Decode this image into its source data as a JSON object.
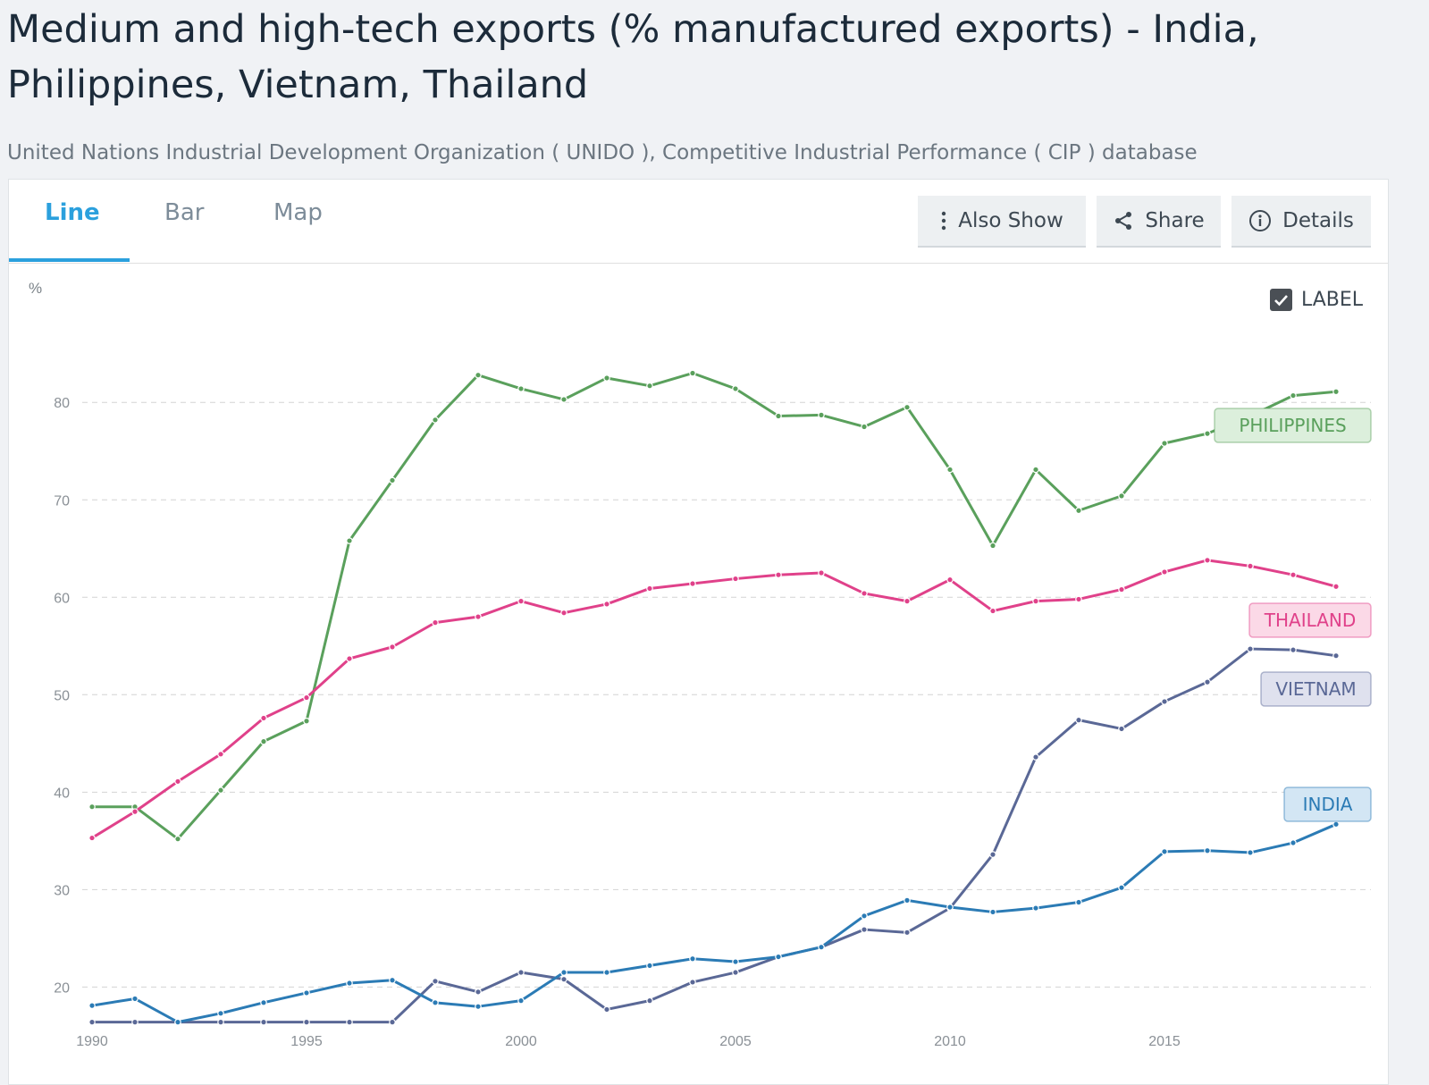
{
  "header": {
    "title": "Medium and high-tech exports (% manufactured exports) - India, Philippines, Vietnam, Thailand",
    "source": "United Nations Industrial Development Organization ( UNIDO ), Competitive Industrial Performance ( CIP ) database"
  },
  "tabs": [
    {
      "label": "Line",
      "active": true
    },
    {
      "label": "Bar",
      "active": false
    },
    {
      "label": "Map",
      "active": false
    }
  ],
  "toolbar": {
    "also_show_label": "Also Show",
    "share_label": "Share",
    "details_label": "Details"
  },
  "icons": {
    "also_show": "vertical-dots-icon",
    "share": "share-icon",
    "details": "info-icon",
    "label_toggle": "checkbox-checked-icon"
  },
  "chart_controls": {
    "unit_label": "%",
    "label_toggle_text": "LABEL",
    "label_toggle_checked": true
  },
  "chart_data": {
    "type": "line",
    "x": [
      1990,
      1991,
      1992,
      1993,
      1994,
      1995,
      1996,
      1997,
      1998,
      1999,
      2000,
      2001,
      2002,
      2003,
      2004,
      2005,
      2006,
      2007,
      2008,
      2009,
      2010,
      2011,
      2012,
      2013,
      2014,
      2015,
      2016,
      2017,
      2018,
      2019
    ],
    "yticks": [
      20,
      30,
      40,
      50,
      60,
      70,
      80
    ],
    "xticks": [
      1990,
      1995,
      2000,
      2005,
      2010,
      2015
    ],
    "xlim": [
      1990,
      2020
    ],
    "ylim": [
      16,
      88
    ],
    "grid": true,
    "series": [
      {
        "name": "PHILIPPINES",
        "color": "#5aa05c",
        "values": [
          38.5,
          38.5,
          35.2,
          40.2,
          45.2,
          47.3,
          65.8,
          72.0,
          78.2,
          82.8,
          81.4,
          80.3,
          82.5,
          81.7,
          83.0,
          81.4,
          78.6,
          78.7,
          77.5,
          79.5,
          73.1,
          65.3,
          73.1,
          68.9,
          70.4,
          75.8,
          76.8,
          78.6,
          80.7,
          81.1
        ]
      },
      {
        "name": "THAILAND",
        "color": "#e0418a",
        "values": [
          35.3,
          38.0,
          41.1,
          43.9,
          47.6,
          49.7,
          53.7,
          54.9,
          57.4,
          58.0,
          59.6,
          58.4,
          59.3,
          60.9,
          61.4,
          61.9,
          62.3,
          62.5,
          60.4,
          59.6,
          61.8,
          58.6,
          59.6,
          59.8,
          60.8,
          62.6,
          63.8,
          63.2,
          62.3,
          61.1
        ]
      },
      {
        "name": "VIETNAM",
        "color": "#5a6896",
        "values": [
          16.4,
          16.4,
          16.4,
          16.4,
          16.4,
          16.4,
          16.4,
          16.4,
          20.6,
          19.5,
          21.5,
          20.8,
          17.7,
          18.6,
          20.5,
          21.5,
          23.1,
          24.1,
          25.9,
          25.6,
          28.1,
          33.6,
          43.6,
          47.4,
          46.5,
          49.3,
          51.3,
          54.7,
          54.6,
          54.0
        ]
      },
      {
        "name": "INDIA",
        "color": "#2b7bb5",
        "values": [
          18.1,
          18.8,
          16.4,
          17.3,
          18.4,
          19.4,
          20.4,
          20.7,
          18.4,
          18.0,
          18.6,
          21.5,
          21.5,
          22.2,
          22.9,
          22.6,
          23.1,
          24.1,
          27.3,
          28.9,
          28.2,
          27.7,
          28.1,
          28.7,
          30.2,
          33.9,
          34.0,
          33.8,
          34.8,
          36.7
        ]
      }
    ]
  }
}
